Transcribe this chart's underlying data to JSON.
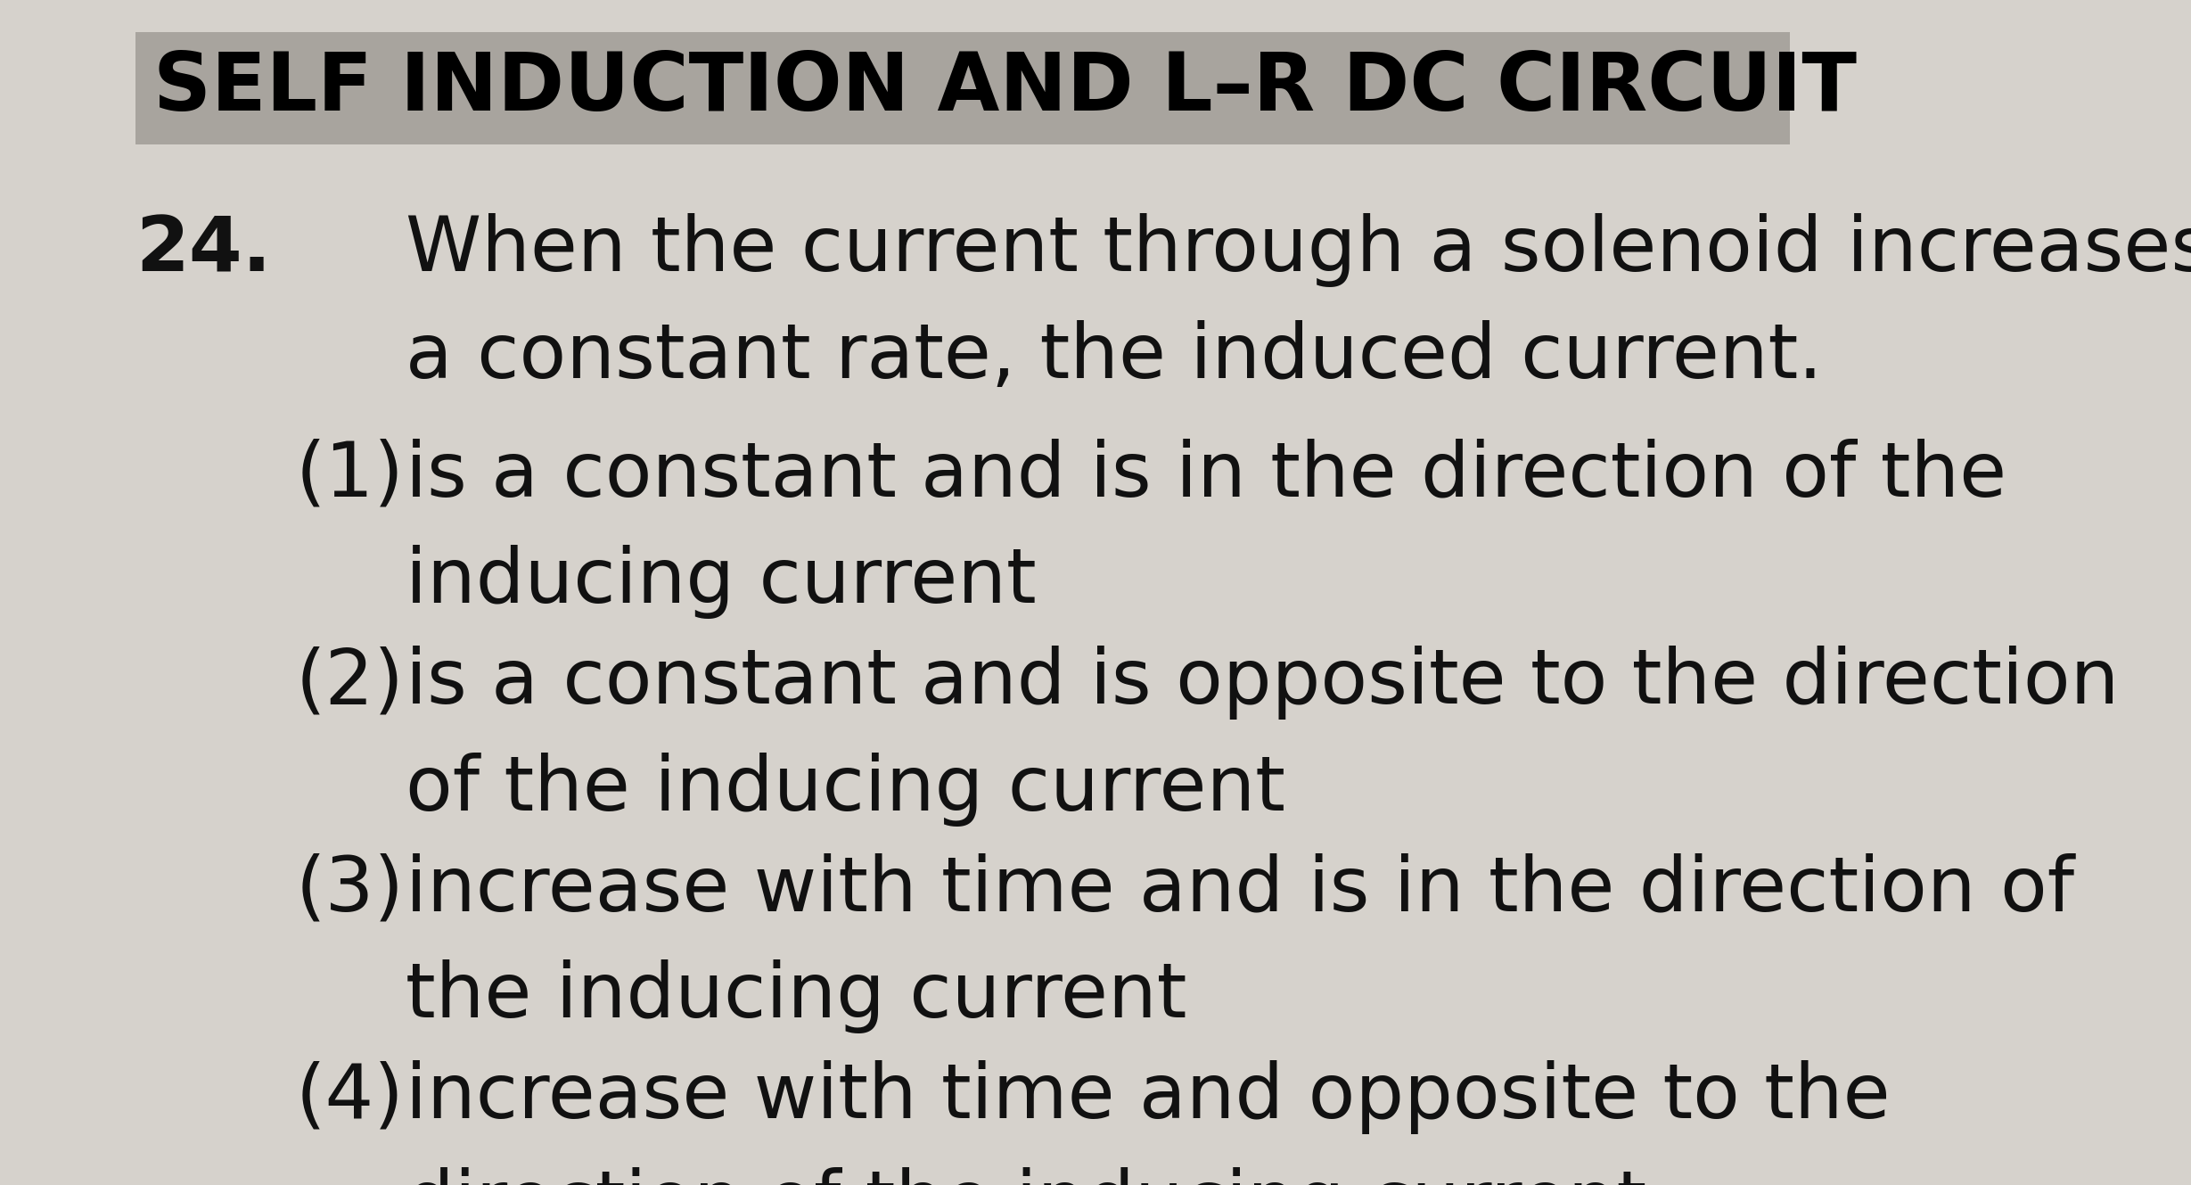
{
  "title": "SELF INDUCTION AND L–R DC CIRCUIT",
  "question_number": "24.",
  "question_text_line1": "When the current through a solenoid increases at",
  "question_text_line2": "a constant rate, the induced current.",
  "options": [
    {
      "number": "(1)",
      "line1": "is a constant and is in the direction of the",
      "line2": "inducing current"
    },
    {
      "number": "(2)",
      "line1": "is a constant and is opposite to the direction",
      "line2": "of the inducing current"
    },
    {
      "number": "(3)",
      "line1": "increase with time and is in the direction of",
      "line2": "the inducing current"
    },
    {
      "number": "(4)",
      "line1": "increase with time and opposite to the",
      "line2": "direction of the inducing current"
    }
  ],
  "bg_color": "#d6d2cc",
  "title_bg_color": "#a8a49e",
  "text_color": "#111111",
  "title_color": "#000000",
  "fig_width": 24.58,
  "fig_height": 13.29,
  "dpi": 100
}
